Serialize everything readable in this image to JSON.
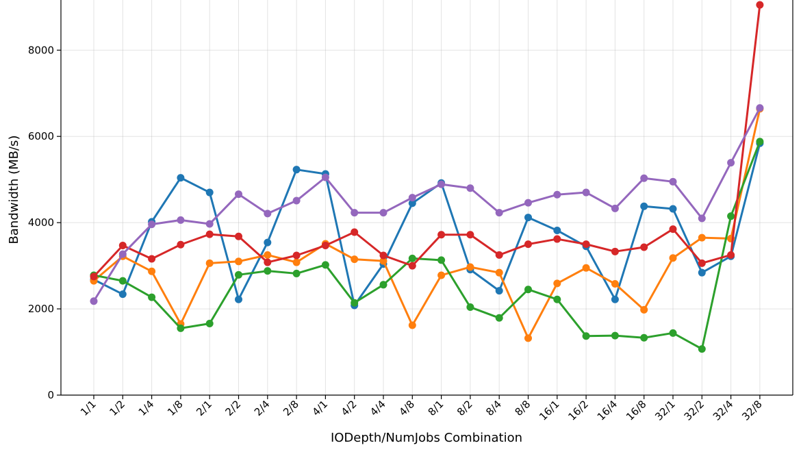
{
  "chart_data": {
    "type": "line",
    "title": "",
    "xlabel": "IODepth/NumJobs Combination",
    "ylabel": "Bandwidth (MB/s)",
    "ylim": [
      0,
      9100
    ],
    "yticks": [
      0,
      2000,
      4000,
      6000,
      8000
    ],
    "grid": true,
    "categories": [
      "1/1",
      "1/2",
      "1/4",
      "1/8",
      "2/1",
      "2/2",
      "2/4",
      "2/8",
      "4/1",
      "4/2",
      "4/4",
      "4/8",
      "8/1",
      "8/2",
      "8/4",
      "8/8",
      "16/1",
      "16/2",
      "16/4",
      "16/8",
      "32/1",
      "32/2",
      "32/4",
      "32/8"
    ],
    "series": [
      {
        "color": "#1f77b4",
        "values": [
          2680,
          2340,
          4020,
          5040,
          4700,
          2220,
          3540,
          5230,
          5130,
          2080,
          3040,
          4450,
          4920,
          2910,
          2420,
          4120,
          3820,
          3450,
          2220,
          4380,
          4320,
          2840,
          3220,
          5840
        ]
      },
      {
        "color": "#ff7f0e",
        "values": [
          2650,
          3220,
          2870,
          1650,
          3060,
          3100,
          3250,
          3080,
          3510,
          3150,
          3110,
          1620,
          2780,
          2970,
          2840,
          1320,
          2590,
          2950,
          2580,
          1980,
          3180,
          3650,
          3630,
          6640
        ]
      },
      {
        "color": "#2ca02c",
        "values": [
          2780,
          2650,
          2270,
          1550,
          1660,
          2790,
          2880,
          2820,
          3020,
          2140,
          2560,
          3170,
          3130,
          2040,
          1790,
          2450,
          2220,
          1370,
          1380,
          1330,
          1440,
          1070,
          4150,
          5880
        ]
      },
      {
        "color": "#d62728",
        "values": [
          2750,
          3470,
          3160,
          3490,
          3730,
          3680,
          3080,
          3240,
          3470,
          3780,
          3240,
          3000,
          3720,
          3720,
          3250,
          3500,
          3620,
          3500,
          3330,
          3430,
          3850,
          3060,
          3250,
          9050
        ]
      },
      {
        "color": "#9467bd",
        "values": [
          2180,
          3270,
          3960,
          4060,
          3970,
          4660,
          4210,
          4510,
          5050,
          4230,
          4230,
          4580,
          4890,
          4800,
          4230,
          4460,
          4650,
          4700,
          4330,
          5030,
          4950,
          4100,
          5390,
          6660
        ]
      }
    ]
  }
}
